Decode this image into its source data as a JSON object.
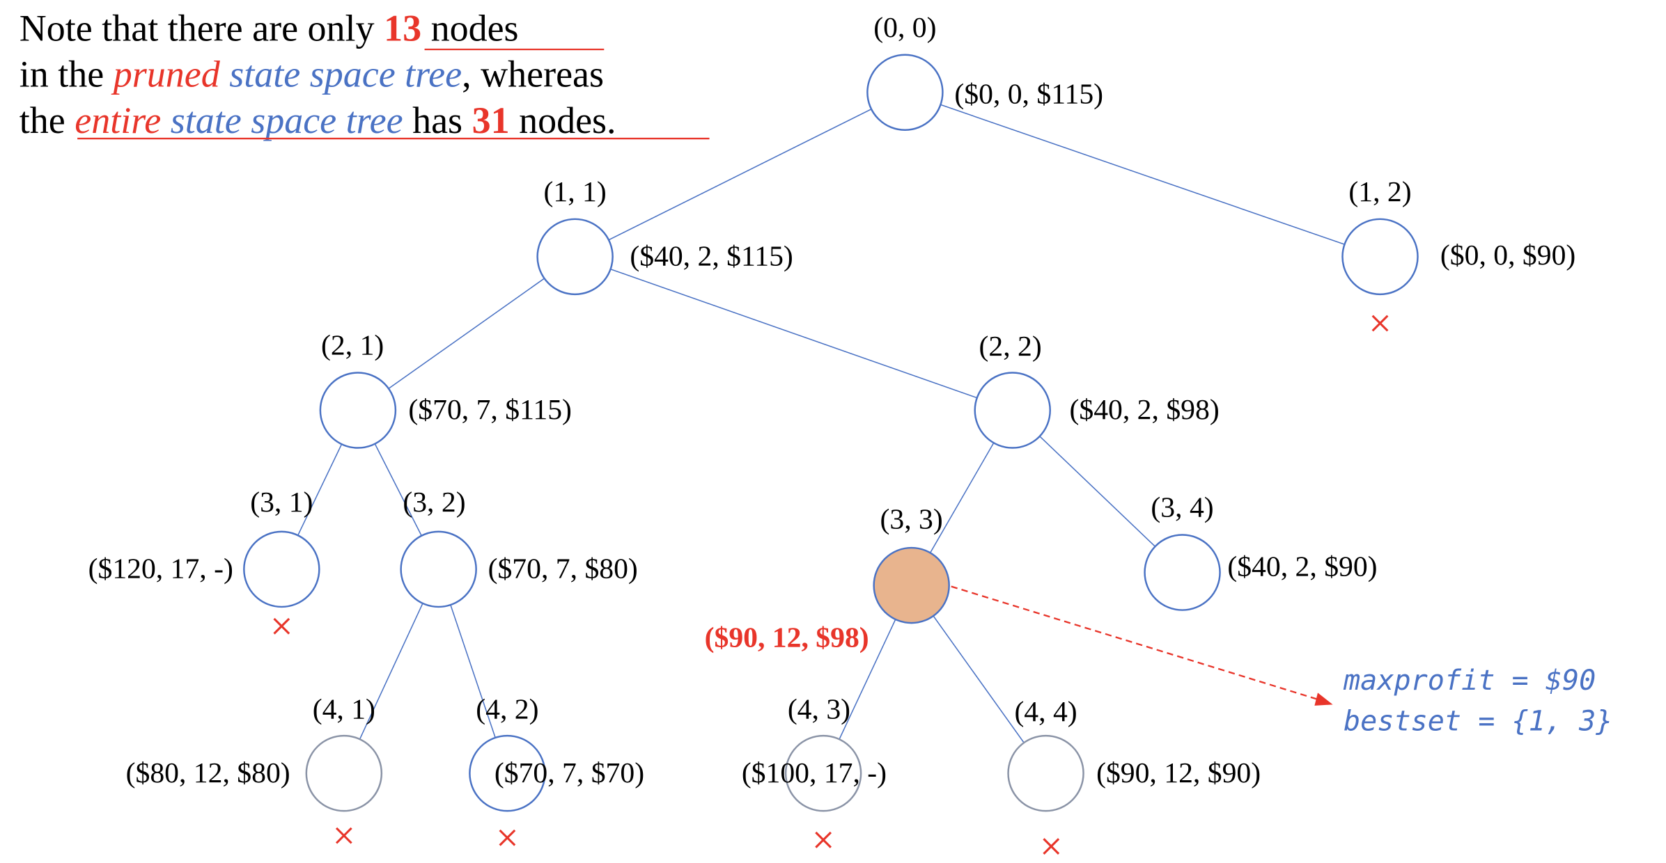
{
  "note": {
    "line1": [
      "Note that there are only ",
      "13",
      " nodes"
    ],
    "line2": [
      "in the ",
      "pruned",
      " ",
      "state space tree",
      ", whereas"
    ],
    "line3": [
      "the ",
      "entire",
      " ",
      "state space tree",
      " has ",
      "31",
      " nodes."
    ]
  },
  "nodes": [
    {
      "label": "(0, 0)",
      "info": "($0, 0, $115)"
    },
    {
      "label": "(1, 1)",
      "info": "($40, 2, $115)"
    },
    {
      "label": "(1, 2)",
      "info": "($0, 0, $90)"
    },
    {
      "label": "(2, 1)",
      "info": "($70, 7, $115)"
    },
    {
      "label": "(2, 2)",
      "info": "($40, 2, $98)"
    },
    {
      "label": "(3, 1)",
      "info": "($120, 17, -)"
    },
    {
      "label": "(3, 2)",
      "info": "($70, 7, $80)"
    },
    {
      "label": "(3, 3)",
      "info": "($90, 12, $98)"
    },
    {
      "label": "(3, 4)",
      "info": "($40, 2, $90)"
    },
    {
      "label": "(4, 1)",
      "info": "($80, 12, $80)"
    },
    {
      "label": "(4, 2)",
      "info": "($70, 7, $70)"
    },
    {
      "label": "(4, 3)",
      "info": "($100, 17, -)"
    },
    {
      "label": "(4, 4)",
      "info": "($90, 12, $90)"
    }
  ],
  "annotation": {
    "maxprofit": "maxprofit = $90",
    "bestset": "bestset = {1, 3}"
  }
}
